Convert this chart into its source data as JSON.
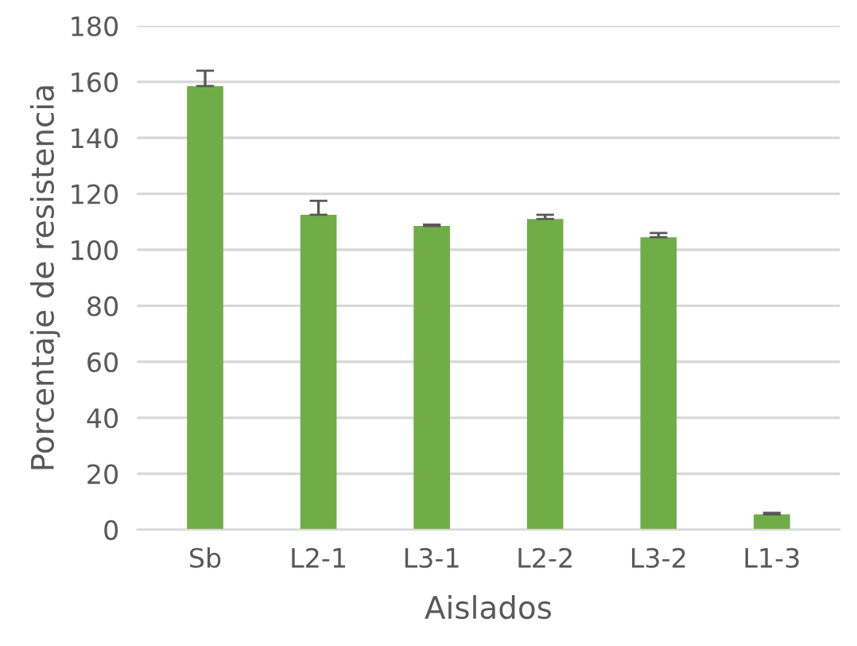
{
  "chart_data": {
    "type": "bar",
    "xlabel": "Aislados",
    "ylabel": "Porcentaje de resistencia",
    "categories": [
      "Sb",
      "L2-1",
      "L3-1",
      "L2-2",
      "L3-2",
      "L1-3"
    ],
    "values": [
      158.5,
      112.5,
      108.5,
      111,
      104.5,
      5.5
    ],
    "errors": [
      [
        158.5,
        164
      ],
      [
        112.5,
        117.5
      ],
      [
        108.5,
        109
      ],
      [
        111,
        112.5
      ],
      [
        104.5,
        106
      ],
      [
        5.5,
        6
      ]
    ],
    "color": "#70ad47",
    "ylim": [
      0,
      180
    ],
    "yticks": [
      0,
      20,
      40,
      60,
      80,
      100,
      120,
      140,
      160,
      180
    ],
    "grid": "y",
    "legend": false
  }
}
